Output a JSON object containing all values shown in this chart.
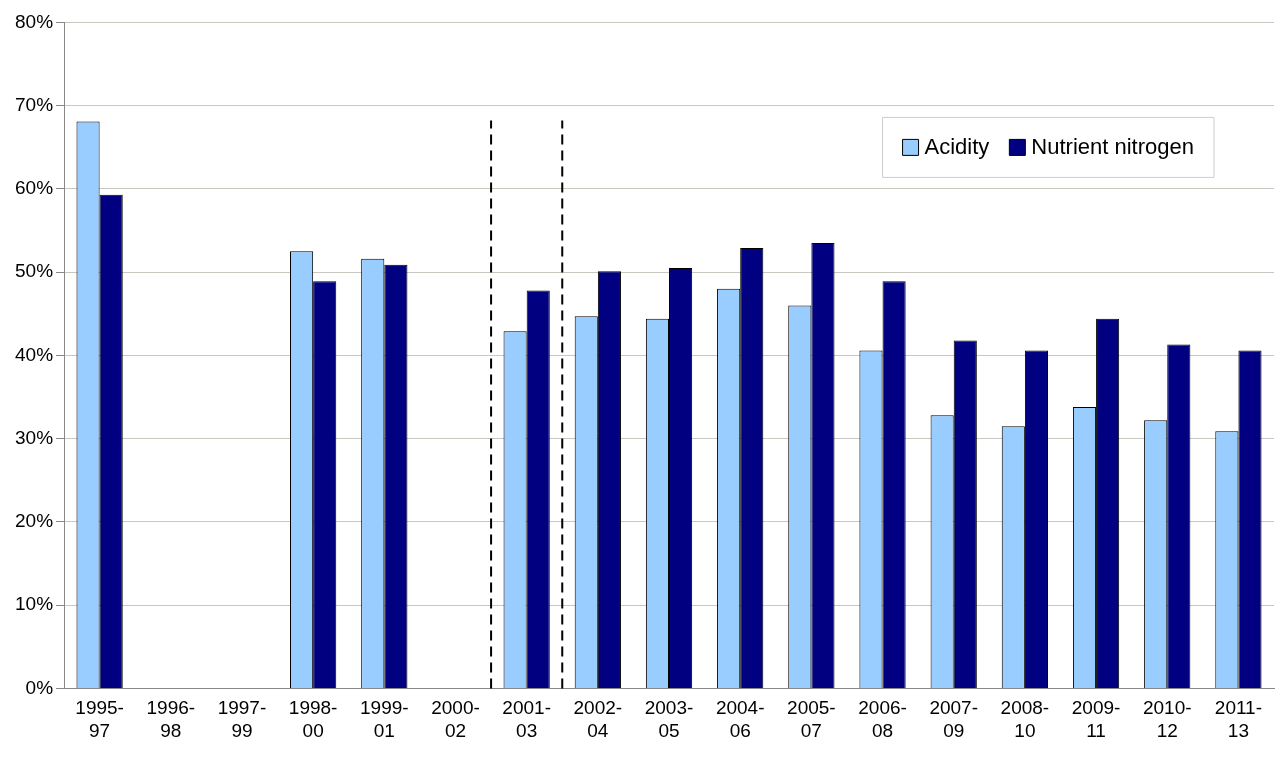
{
  "chart_data": {
    "type": "bar",
    "categories": [
      "1995-97",
      "1996-98",
      "1997-99",
      "1998-00",
      "1999-01",
      "2000-02",
      "2001-03",
      "2002-04",
      "2003-05",
      "2004-06",
      "2005-07",
      "2006-08",
      "2007-09",
      "2008-10",
      "2009-11",
      "2010-12",
      "2011-13"
    ],
    "series": [
      {
        "name": "Acidity",
        "color": "#99ccff",
        "values": [
          68.1,
          null,
          null,
          52.5,
          51.6,
          null,
          42.9,
          44.7,
          44.4,
          48.0,
          46.0,
          40.6,
          32.8,
          31.5,
          33.8,
          32.2,
          30.9
        ]
      },
      {
        "name": "Nutrient nitrogen",
        "color": "#000080",
        "values": [
          59.3,
          null,
          null,
          48.9,
          50.9,
          null,
          47.8,
          50.1,
          50.5,
          52.9,
          53.5,
          48.9,
          41.8,
          40.6,
          44.4,
          41.3,
          40.6
        ]
      }
    ],
    "ylim": [
      0,
      80
    ],
    "yticks": [
      {
        "value": 0,
        "label": "0%"
      },
      {
        "value": 10,
        "label": "10%"
      },
      {
        "value": 20,
        "label": "20%"
      },
      {
        "value": 30,
        "label": "30%"
      },
      {
        "value": 40,
        "label": "40%"
      },
      {
        "value": 50,
        "label": "50%"
      },
      {
        "value": 60,
        "label": "60%"
      },
      {
        "value": 70,
        "label": "70%"
      },
      {
        "value": 80,
        "label": "80%"
      }
    ],
    "grid": "y",
    "legend": "top right"
  }
}
